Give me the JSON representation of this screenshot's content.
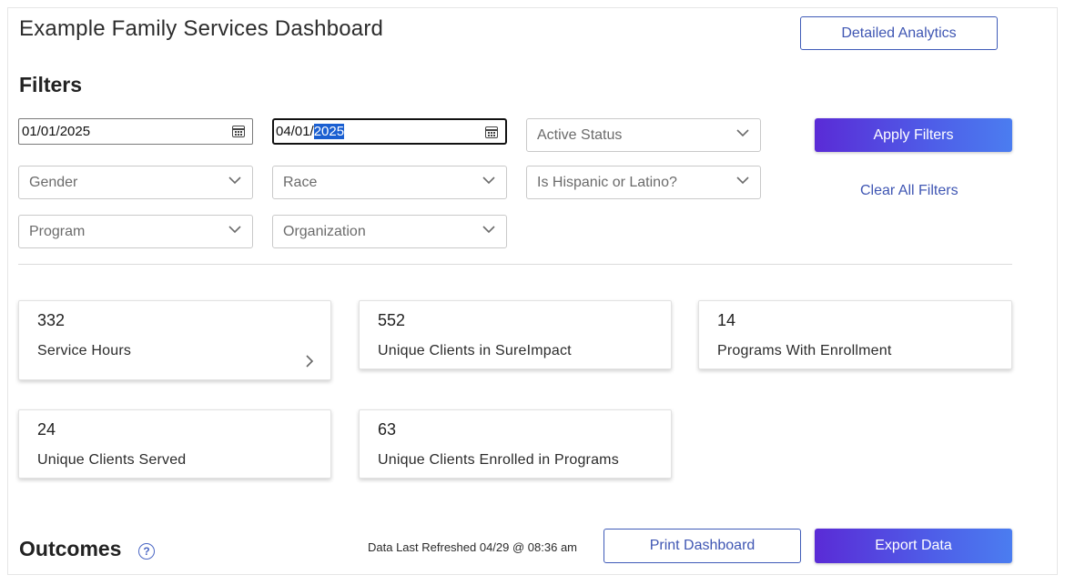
{
  "header": {
    "title": "Example Family Services Dashboard",
    "detailed_analytics_label": "Detailed Analytics"
  },
  "filters": {
    "heading": "Filters",
    "start_date": "01/01/2025",
    "end_date_prefix": "04/01/",
    "end_date_selected": "2025",
    "active_status_placeholder": "Active Status",
    "gender_placeholder": "Gender",
    "race_placeholder": "Race",
    "hispanic_placeholder": "Is Hispanic or Latino?",
    "program_placeholder": "Program",
    "organization_placeholder": "Organization",
    "apply_label": "Apply Filters",
    "clear_label": "Clear All Filters"
  },
  "cards": [
    {
      "value": "332",
      "label": "Service Hours",
      "has_arrow": true
    },
    {
      "value": "552",
      "label": "Unique Clients in SureImpact"
    },
    {
      "value": "14",
      "label": "Programs With Enrollment"
    },
    {
      "value": "24",
      "label": "Unique Clients Served"
    },
    {
      "value": "63",
      "label": "Unique Clients Enrolled in Programs"
    }
  ],
  "footer": {
    "outcomes_heading": "Outcomes",
    "help_glyph": "?",
    "refreshed_text": "Data Last Refreshed 04/29 @ 08:36 am",
    "print_label": "Print Dashboard",
    "export_label": "Export Data"
  },
  "colors": {
    "accent": "#3f56b3",
    "gradient_start": "#5a2bd6",
    "gradient_end": "#4b7df0",
    "selection": "#1a5fd1"
  }
}
